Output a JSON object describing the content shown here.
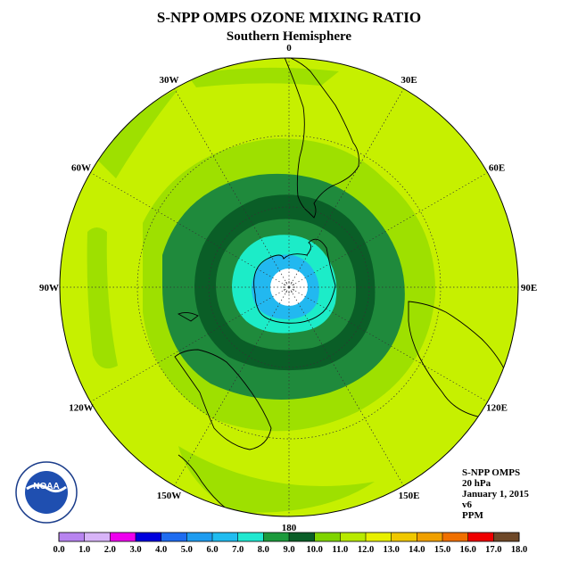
{
  "header": {
    "title": "S-NPP OMPS OZONE MIXING RATIO",
    "subtitle": "Southern Hemisphere"
  },
  "map": {
    "projection": "south polar stereographic",
    "longitude_labels": [
      {
        "text": "90W",
        "lon": -90
      },
      {
        "text": "60W",
        "lon": -60
      },
      {
        "text": "30W",
        "lon": -30
      },
      {
        "text": "0",
        "lon": 0
      },
      {
        "text": "30E",
        "lon": 30
      },
      {
        "text": "60E",
        "lon": 60
      },
      {
        "text": "90E",
        "lon": 90
      },
      {
        "text": "120E",
        "lon": 120
      },
      {
        "text": "150E",
        "lon": 150
      },
      {
        "text": "180",
        "lon": 180
      },
      {
        "text": "150W",
        "lon": -150
      },
      {
        "text": "120W",
        "lon": -120
      }
    ],
    "latitude_circles": [
      -30,
      -60
    ],
    "colors": {
      "outer": "#c6f000",
      "band_11_12": "#9ee000",
      "band_9_10": "#1f8a3c",
      "band_10_11": "#0a5e27",
      "band_8_9": "#1cecc8",
      "band_7_8": "#22b8f0",
      "pole": "#ffffff"
    }
  },
  "info": {
    "line1": "S-NPP OMPS",
    "line2": "20 hPa",
    "line3": "January 1, 2015",
    "line4": "v6",
    "line5": "PPM"
  },
  "logo": {
    "text": "NOAA"
  },
  "colorbar": {
    "ticks": [
      "0.0",
      "1.0",
      "2.0",
      "3.0",
      "4.0",
      "5.0",
      "6.0",
      "7.0",
      "8.0",
      "9.0",
      "10.0",
      "11.0",
      "12.0",
      "13.0",
      "14.0",
      "15.0",
      "16.0",
      "17.0",
      "18.0"
    ],
    "colors": [
      "#b884f0",
      "#d8b4f8",
      "#ee00ee",
      "#0000dd",
      "#1e6cf0",
      "#1e9cf0",
      "#20bcf0",
      "#20e8d0",
      "#1c9a3c",
      "#0a5e27",
      "#7fd400",
      "#b8ea00",
      "#e8f000",
      "#f0c800",
      "#f0a000",
      "#f07000",
      "#ee0000",
      "#6e4828"
    ]
  }
}
